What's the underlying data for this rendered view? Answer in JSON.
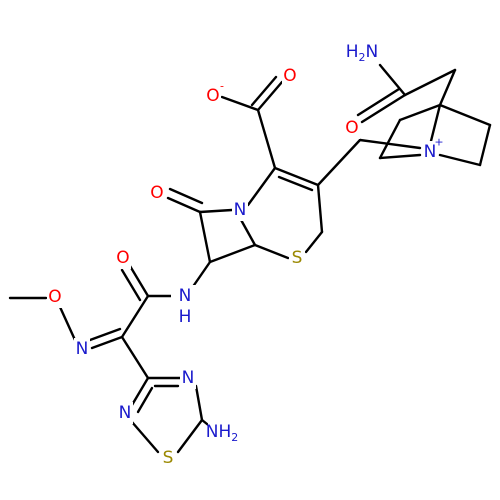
{
  "atoms": [
    {
      "symbol": "O",
      "charge": "-"
    },
    {
      "symbol": "O"
    },
    {
      "symbol": "H",
      "count": "2",
      "symbol2": "N"
    },
    {
      "symbol": "O"
    },
    {
      "symbol": "N",
      "charge": "+"
    },
    {
      "symbol": "O"
    },
    {
      "symbol": "N"
    },
    {
      "symbol": "S"
    },
    {
      "symbol": "N",
      "symbol2": "H"
    },
    {
      "symbol": "O"
    },
    {
      "symbol": "O"
    },
    {
      "symbol": "N"
    },
    {
      "symbol": "N"
    },
    {
      "symbol": "N"
    },
    {
      "symbol": "S"
    },
    {
      "symbol": "N",
      "symbol2": "H",
      "count": "2"
    }
  ]
}
